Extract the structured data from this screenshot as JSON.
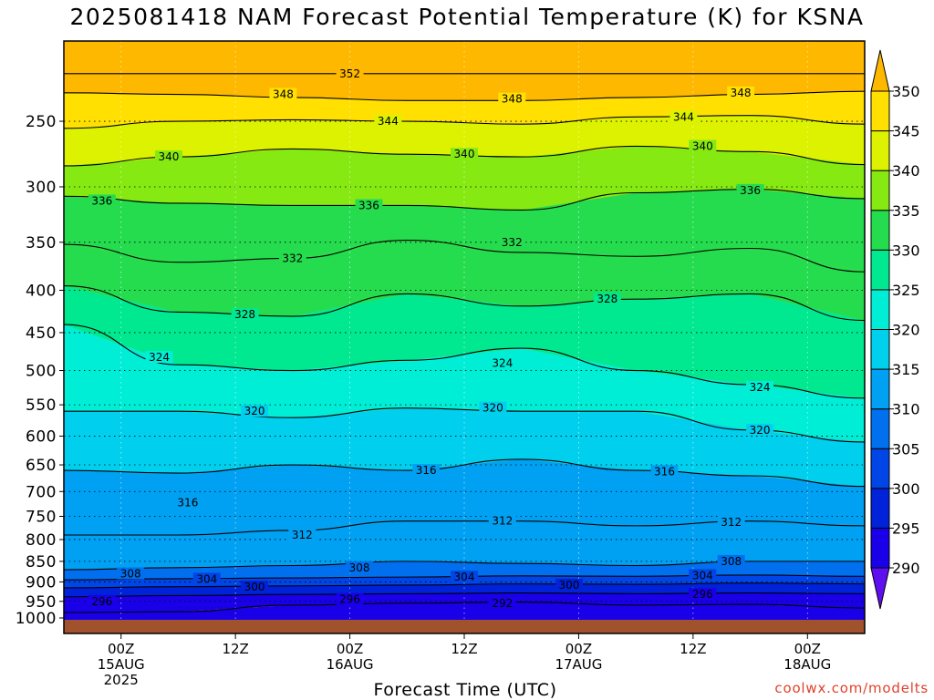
{
  "title": "2025081418 NAM Forecast Potential Temperature (K) for KSNA",
  "credit": "coolwx.com/modelts",
  "chart_data": {
    "type": "heatmap",
    "title": "2025081418 NAM Forecast Potential Temperature (K) for KSNA",
    "xlabel": "Forecast Time (UTC)",
    "ylabel": "",
    "y_axis": "pressure (hPa), log scale, inverted",
    "ylim": [
      1000,
      200
    ],
    "x_range_hours_from_init": [
      0,
      84
    ],
    "y_ticks": [
      250,
      300,
      350,
      400,
      450,
      500,
      550,
      600,
      650,
      700,
      750,
      800,
      850,
      900,
      950,
      1000
    ],
    "x_ticks": [
      {
        "hour": 6,
        "label": [
          "00Z",
          "15AUG",
          "2025"
        ]
      },
      {
        "hour": 18,
        "label": [
          "12Z"
        ]
      },
      {
        "hour": 30,
        "label": [
          "00Z",
          "16AUG"
        ]
      },
      {
        "hour": 42,
        "label": [
          "12Z"
        ]
      },
      {
        "hour": 54,
        "label": [
          "00Z",
          "17AUG"
        ]
      },
      {
        "hour": 66,
        "label": [
          "12Z"
        ]
      },
      {
        "hour": 78,
        "label": [
          "00Z",
          "18AUG"
        ]
      }
    ],
    "colorbar": {
      "levels": [
        290,
        295,
        300,
        305,
        310,
        315,
        320,
        325,
        330,
        335,
        340,
        345,
        350
      ],
      "colors": [
        "#5e0ff0",
        "#1a00e8",
        "#0022d8",
        "#0046e6",
        "#0070ee",
        "#00a0f2",
        "#00d0ee",
        "#00eed6",
        "#00e890",
        "#24dc4e",
        "#86ea12",
        "#dcf200",
        "#ffe000",
        "#ffb800"
      ]
    },
    "contour_interval": 4,
    "contours": [
      {
        "value": 352,
        "p": [
          219,
          219,
          219,
          219,
          219,
          219,
          219,
          219
        ]
      },
      {
        "value": 348,
        "p": [
          231,
          232,
          234,
          236,
          236,
          234,
          232,
          230
        ]
      },
      {
        "value": 344,
        "p": [
          255,
          250,
          249,
          250,
          252,
          247,
          246,
          252
        ]
      },
      {
        "value": 340,
        "p": [
          283,
          276,
          270,
          274,
          276,
          268,
          272,
          282
        ]
      },
      {
        "value": 336,
        "p": [
          308,
          314,
          316,
          316,
          320,
          305,
          302,
          310
        ]
      },
      {
        "value": 332,
        "p": [
          352,
          370,
          366,
          348,
          360,
          364,
          356,
          380
        ]
      },
      {
        "value": 328,
        "p": [
          395,
          425,
          430,
          404,
          418,
          410,
          404,
          435
        ]
      },
      {
        "value": 324,
        "p": [
          440,
          492,
          500,
          486,
          470,
          500,
          520,
          540
        ]
      },
      {
        "value": 320,
        "p": [
          560,
          560,
          570,
          555,
          560,
          560,
          590,
          610
        ]
      },
      {
        "value": 316,
        "p": [
          660,
          665,
          650,
          660,
          640,
          660,
          670,
          690
        ]
      },
      {
        "value": 312,
        "p": [
          790,
          790,
          780,
          760,
          760,
          770,
          760,
          770
        ]
      },
      {
        "value": 308,
        "p": [
          870,
          865,
          860,
          850,
          855,
          860,
          850,
          850
        ]
      },
      {
        "value": 304,
        "p": [
          895,
          892,
          890,
          888,
          885,
          886,
          883,
          886
        ]
      },
      {
        "value": 300,
        "p": [
          915,
          912,
          910,
          908,
          905,
          906,
          903,
          905
        ]
      },
      {
        "value": 296,
        "p": [
          938,
          935,
          932,
          930,
          928,
          930,
          928,
          930
        ]
      },
      {
        "value": 292,
        "p": [
          980,
          978,
          960,
          955,
          952,
          960,
          958,
          968
        ]
      }
    ],
    "contour_labels": [
      {
        "value": 352,
        "hour": 30,
        "p": 219
      },
      {
        "value": 348,
        "hour": 23,
        "p": 232
      },
      {
        "value": 348,
        "hour": 47,
        "p": 235
      },
      {
        "value": 348,
        "hour": 71,
        "p": 231
      },
      {
        "value": 344,
        "hour": 34,
        "p": 250
      },
      {
        "value": 344,
        "hour": 65,
        "p": 247
      },
      {
        "value": 340,
        "hour": 11,
        "p": 276
      },
      {
        "value": 340,
        "hour": 42,
        "p": 274
      },
      {
        "value": 340,
        "hour": 67,
        "p": 268
      },
      {
        "value": 336,
        "hour": 4,
        "p": 312
      },
      {
        "value": 336,
        "hour": 32,
        "p": 316
      },
      {
        "value": 336,
        "hour": 72,
        "p": 303
      },
      {
        "value": 332,
        "hour": 24,
        "p": 366
      },
      {
        "value": 332,
        "hour": 47,
        "p": 350
      },
      {
        "value": 328,
        "hour": 19,
        "p": 428
      },
      {
        "value": 328,
        "hour": 57,
        "p": 410
      },
      {
        "value": 324,
        "hour": 10,
        "p": 482
      },
      {
        "value": 324,
        "hour": 46,
        "p": 490
      },
      {
        "value": 324,
        "hour": 73,
        "p": 524
      },
      {
        "value": 320,
        "hour": 20,
        "p": 560
      },
      {
        "value": 320,
        "hour": 45,
        "p": 555
      },
      {
        "value": 320,
        "hour": 73,
        "p": 590
      },
      {
        "value": 316,
        "hour": 13,
        "p": 722
      },
      {
        "value": 316,
        "hour": 38,
        "p": 660
      },
      {
        "value": 316,
        "hour": 63,
        "p": 662
      },
      {
        "value": 312,
        "hour": 25,
        "p": 790
      },
      {
        "value": 312,
        "hour": 46,
        "p": 760
      },
      {
        "value": 312,
        "hour": 70,
        "p": 762
      },
      {
        "value": 308,
        "hour": 7,
        "p": 880
      },
      {
        "value": 308,
        "hour": 31,
        "p": 865
      },
      {
        "value": 308,
        "hour": 70,
        "p": 850
      },
      {
        "value": 304,
        "hour": 15,
        "p": 893
      },
      {
        "value": 304,
        "hour": 42,
        "p": 888
      },
      {
        "value": 304,
        "hour": 67,
        "p": 884
      },
      {
        "value": 300,
        "hour": 20,
        "p": 913
      },
      {
        "value": 300,
        "hour": 53,
        "p": 908
      },
      {
        "value": 296,
        "hour": 4,
        "p": 950
      },
      {
        "value": 296,
        "hour": 30,
        "p": 945
      },
      {
        "value": 296,
        "hour": 67,
        "p": 932
      },
      {
        "value": 292,
        "hour": 46,
        "p": 955
      }
    ],
    "ground": {
      "color": "#a0522d"
    }
  }
}
